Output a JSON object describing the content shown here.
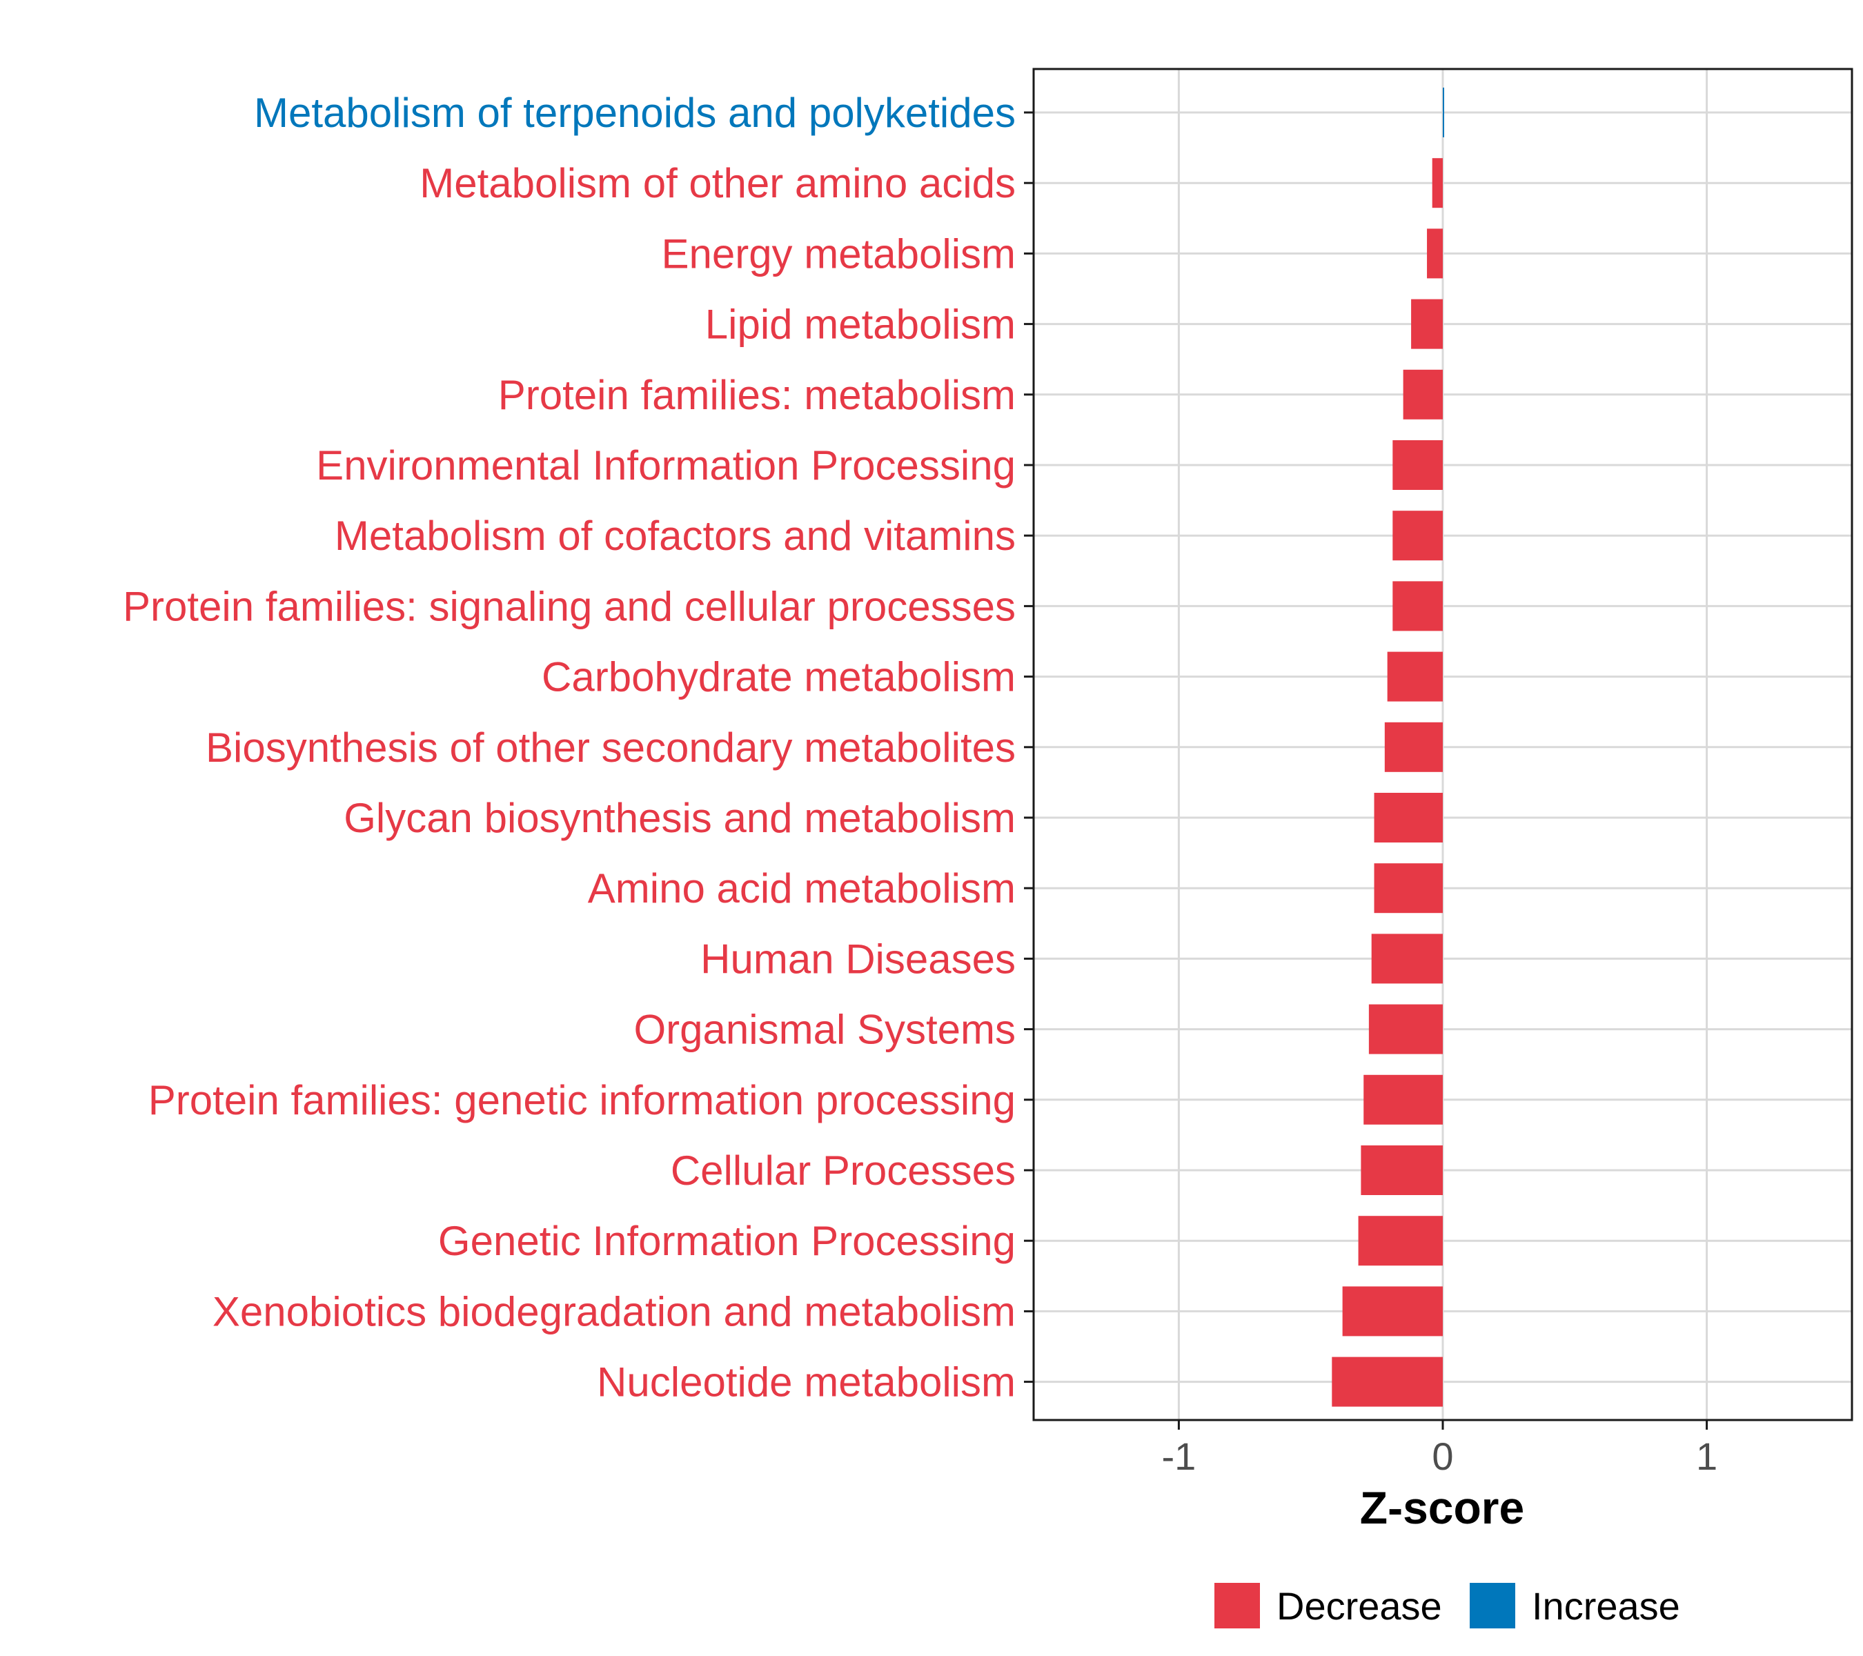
{
  "chart_data": {
    "type": "bar",
    "orientation": "horizontal",
    "xlabel": "Z-score",
    "xlim": [
      -1.55,
      1.55
    ],
    "xticks": [
      -1,
      0,
      1
    ],
    "xtick_labels": [
      "-1",
      "0",
      "1"
    ],
    "grid": true,
    "legend_position": "bottom",
    "legend": [
      {
        "label": "Decrease",
        "color": "#e63946"
      },
      {
        "label": "Increase",
        "color": "#0077bb"
      }
    ],
    "categories": [
      "Metabolism of terpenoids and polyketides",
      "Metabolism of other amino acids",
      "Energy metabolism",
      "Lipid metabolism",
      "Protein families: metabolism",
      "Environmental Information Processing",
      "Metabolism of cofactors and vitamins",
      "Protein families: signaling and cellular processes",
      "Carbohydrate metabolism",
      "Biosynthesis of other secondary metabolites",
      "Glycan biosynthesis and metabolism",
      "Amino acid metabolism",
      "Human Diseases",
      "Organismal Systems",
      "Protein families: genetic information processing",
      "Cellular Processes",
      "Genetic Information Processing",
      "Xenobiotics biodegradation and metabolism",
      "Nucleotide metabolism"
    ],
    "values": [
      0.005,
      -0.04,
      -0.06,
      -0.12,
      -0.15,
      -0.19,
      -0.19,
      -0.19,
      -0.21,
      -0.22,
      -0.26,
      -0.26,
      -0.27,
      -0.28,
      -0.3,
      -0.31,
      -0.32,
      -0.38,
      -0.42
    ],
    "direction": [
      "Increase",
      "Decrease",
      "Decrease",
      "Decrease",
      "Decrease",
      "Decrease",
      "Decrease",
      "Decrease",
      "Decrease",
      "Decrease",
      "Decrease",
      "Decrease",
      "Decrease",
      "Decrease",
      "Decrease",
      "Decrease",
      "Decrease",
      "Decrease",
      "Decrease"
    ]
  }
}
